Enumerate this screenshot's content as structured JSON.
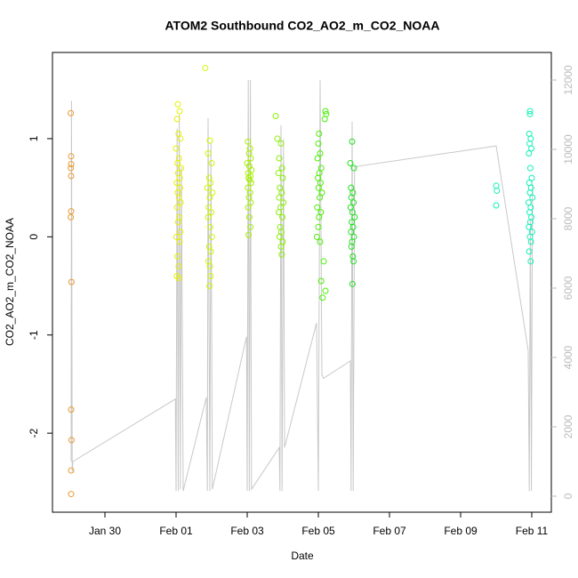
{
  "chart_data": {
    "type": "scatter",
    "title": "ATOM2 Southbound CO2_AO2_m_CO2_NOAA",
    "x_label": "Date",
    "y_label": "CO2_AO2_m_CO2_NOAA",
    "xlim": [
      28.525,
      42.55
    ],
    "ylim": [
      -2.805,
      1.878
    ],
    "y2lim": [
      -462,
      12795
    ],
    "xticks": [
      {
        "value": 30,
        "label": "Jan 30"
      },
      {
        "value": 32,
        "label": "Feb 01"
      },
      {
        "value": 34,
        "label": "Feb 03"
      },
      {
        "value": 36,
        "label": "Feb 05"
      },
      {
        "value": 38,
        "label": "Feb 07"
      },
      {
        "value": 40,
        "label": "Feb 09"
      },
      {
        "value": 42,
        "label": "Feb 11"
      }
    ],
    "yticks": [
      -2,
      -1,
      0,
      1
    ],
    "y2ticks": [
      0,
      2000,
      4000,
      6000,
      8000,
      10000,
      12000
    ],
    "series": [
      {
        "type": "line",
        "axis": "y2",
        "color": "#c8c8c8",
        "x": [
          29.05,
          29.06,
          29.08,
          29.1,
          31.98,
          32.0,
          32.03,
          32.06,
          32.09,
          32.12,
          32.15,
          32.2,
          32.85,
          32.88,
          32.9,
          32.95,
          32.98,
          33.02,
          33.98,
          34.0,
          34.03,
          34.06,
          34.09,
          34.12,
          34.9,
          34.92,
          34.95,
          34.98,
          35.02,
          35.05,
          35.95,
          36.0,
          36.05,
          36.1,
          36.15,
          36.9,
          36.92,
          36.95,
          36.98,
          37.02,
          41.0,
          41.9,
          41.93,
          41.96,
          41.99,
          42.02
        ],
        "values": [
          1000,
          11400,
          700,
          1000,
          2800,
          150,
          10600,
          150,
          11000,
          200,
          9500,
          150,
          2850,
          150,
          10900,
          150,
          10200,
          200,
          4600,
          150,
          12000,
          150,
          12000,
          200,
          1400,
          150,
          10700,
          150,
          10300,
          1400,
          5000,
          150,
          12000,
          3500,
          3400,
          3900,
          150,
          10800,
          150,
          9500,
          10100,
          4200,
          150,
          8000,
          150,
          9000
        ]
      },
      {
        "color": "#e89a30",
        "x": [
          29.04,
          29.05,
          29.05,
          29.04,
          29.05,
          29.05,
          29.04,
          29.06,
          29.05,
          29.06,
          29.05,
          29.05
        ],
        "values": [
          1.26,
          0.82,
          0.74,
          0.7,
          0.62,
          0.26,
          0.2,
          -0.46,
          -1.76,
          -2.07,
          -2.38,
          -2.62
        ]
      },
      {
        "color": "#e6f000",
        "x": [
          32.05,
          32.1,
          32.03,
          32.07,
          32.12,
          32.0,
          32.08,
          32.04,
          32.14,
          32.06,
          32.1,
          32.02,
          32.11,
          32.05,
          32.08,
          32.13,
          32.03,
          32.09,
          32.06,
          32.12,
          32.01,
          32.1,
          32.04,
          32.07,
          32.02,
          32.08
        ],
        "values": [
          1.35,
          1.28,
          1.2,
          1.05,
          1.0,
          0.9,
          0.8,
          0.75,
          0.7,
          0.65,
          0.6,
          0.55,
          0.5,
          0.45,
          0.4,
          0.35,
          0.3,
          0.2,
          0.15,
          0.05,
          0.0,
          -0.05,
          -0.2,
          -0.3,
          -0.4,
          -0.42
        ]
      },
      {
        "color": "#ccf800",
        "x": [
          32.82,
          32.95,
          32.9,
          33.0,
          32.93,
          32.97,
          32.88,
          33.02,
          32.95,
          32.92,
          32.99,
          32.9,
          32.96,
          33.01,
          32.93,
          32.98,
          32.91,
          32.95,
          32.97,
          32.94
        ],
        "values": [
          1.72,
          0.98,
          0.85,
          0.75,
          0.6,
          0.55,
          0.5,
          0.45,
          0.4,
          0.3,
          0.25,
          0.2,
          0.1,
          0.0,
          -0.1,
          -0.15,
          -0.25,
          -0.3,
          -0.4,
          -0.5
        ]
      },
      {
        "color": "#a8f000",
        "x": [
          34.02,
          34.08,
          34.05,
          34.1,
          34.0,
          34.06,
          34.12,
          34.03,
          34.09,
          34.04,
          34.07,
          34.11,
          34.02,
          34.08,
          34.05,
          34.1,
          34.03,
          34.06,
          34.09,
          34.04
        ],
        "values": [
          0.97,
          0.9,
          0.85,
          0.8,
          0.75,
          0.72,
          0.68,
          0.65,
          0.62,
          0.6,
          0.58,
          0.55,
          0.5,
          0.45,
          0.4,
          0.35,
          0.3,
          0.2,
          0.1,
          0.02
        ]
      },
      {
        "color": "#88f000",
        "x": [
          34.8,
          34.85,
          34.95,
          34.9,
          34.98,
          34.88,
          35.0,
          34.92,
          34.97,
          34.9,
          35.02,
          34.94,
          34.89,
          34.99,
          34.93,
          34.96,
          34.91,
          35.0,
          34.95,
          34.97
        ],
        "values": [
          1.23,
          1.0,
          0.95,
          0.8,
          0.7,
          0.65,
          0.6,
          0.5,
          0.45,
          0.4,
          0.35,
          0.3,
          0.25,
          0.2,
          0.1,
          0.05,
          0.0,
          -0.05,
          -0.1,
          -0.18
        ]
      },
      {
        "color": "#48f000",
        "x": [
          36.2,
          36.22,
          36.18,
          36.02,
          36.0,
          36.05,
          35.98,
          36.08,
          36.03,
          35.99,
          36.06,
          36.01,
          36.1,
          36.04,
          35.97,
          36.07,
          36.02,
          36.0,
          35.96,
          36.05,
          36.15,
          36.08,
          36.2,
          36.12
        ],
        "values": [
          1.28,
          1.25,
          1.2,
          1.05,
          0.95,
          0.85,
          0.8,
          0.7,
          0.65,
          0.6,
          0.55,
          0.5,
          0.45,
          0.4,
          0.3,
          0.25,
          0.2,
          0.1,
          0.0,
          -0.05,
          -0.25,
          -0.45,
          -0.55,
          -0.62
        ]
      },
      {
        "color": "#20e020",
        "x": [
          36.95,
          36.9,
          37.0,
          36.92,
          36.97,
          36.93,
          36.99,
          36.91,
          36.96,
          37.02,
          36.94,
          36.98,
          36.92,
          37.0,
          36.95,
          36.93,
          36.97,
          36.99,
          36.96
        ],
        "values": [
          0.97,
          0.75,
          0.7,
          0.5,
          0.45,
          0.4,
          0.35,
          0.3,
          0.25,
          0.2,
          0.15,
          0.1,
          0.05,
          0.0,
          -0.05,
          -0.1,
          -0.2,
          -0.25,
          -0.48
        ]
      },
      {
        "color": "#10f0b8",
        "x": [
          41.0,
          41.02,
          41.0,
          41.95,
          41.95,
          41.93,
          41.97,
          41.94,
          41.99,
          41.92,
          41.96,
          42.0,
          41.93,
          41.98,
          41.95,
          42.02,
          41.91,
          41.97,
          41.94,
          41.99,
          41.96,
          41.92,
          42.01,
          41.95,
          41.98,
          41.93,
          41.97
        ],
        "values": [
          0.52,
          0.47,
          0.32,
          1.28,
          1.25,
          1.05,
          1.0,
          0.95,
          0.9,
          0.85,
          0.7,
          0.6,
          0.55,
          0.5,
          0.45,
          0.4,
          0.35,
          0.3,
          0.25,
          0.2,
          0.15,
          0.1,
          0.05,
          0.0,
          -0.05,
          -0.15,
          -0.25
        ]
      }
    ]
  }
}
